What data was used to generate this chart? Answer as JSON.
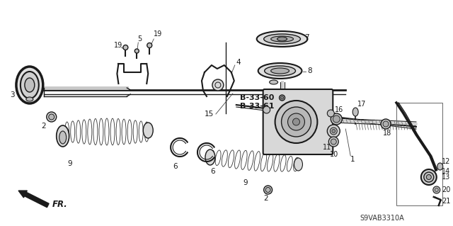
{
  "background_color": "#ffffff",
  "line_color": "#1a1a1a",
  "diagram_code": "S9VAB3310A",
  "fr_label": "FR.",
  "b3360": "B-33-60",
  "b3361": "B-33-61",
  "figsize": [
    6.4,
    3.19
  ],
  "dpi": 100
}
